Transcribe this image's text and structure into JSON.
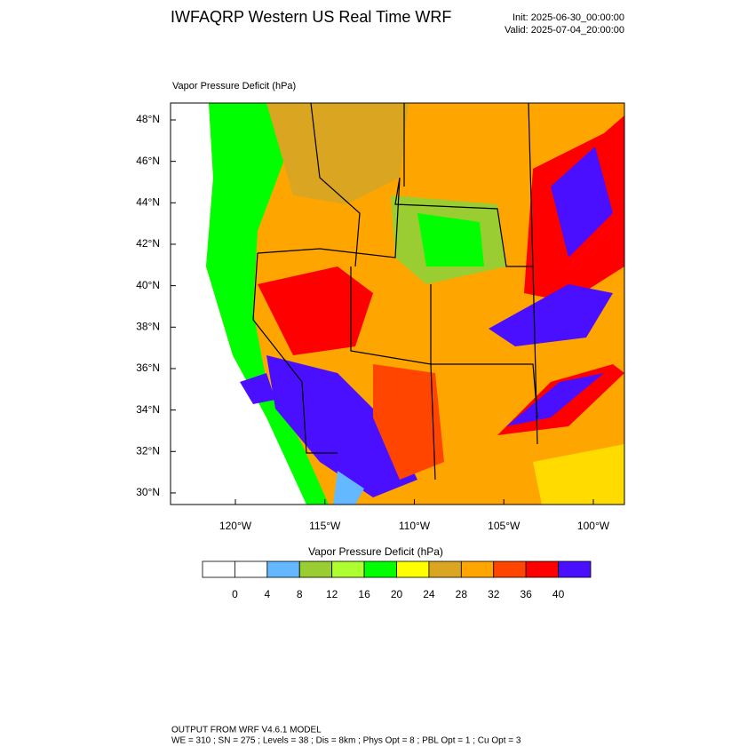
{
  "header": {
    "title": "IWFAQRP Western US Real Time WRF",
    "init": "Init: 2025-06-30_00:00:00",
    "valid": "Valid: 2025-07-04_20:00:00"
  },
  "map": {
    "title": "Vapor Pressure Deficit   (hPa)",
    "lat_ticks": [
      {
        "value": 48,
        "label": "48°N"
      },
      {
        "value": 46,
        "label": "46°N"
      },
      {
        "value": 44,
        "label": "44°N"
      },
      {
        "value": 42,
        "label": "42°N"
      },
      {
        "value": 40,
        "label": "40°N"
      },
      {
        "value": 38,
        "label": "38°N"
      },
      {
        "value": 36,
        "label": "36°N"
      },
      {
        "value": 34,
        "label": "34°N"
      },
      {
        "value": 32,
        "label": "32°N"
      },
      {
        "value": 30,
        "label": "30°N"
      }
    ],
    "lon_ticks": [
      {
        "value": -120,
        "label": "120°W"
      },
      {
        "value": -115,
        "label": "115°W"
      },
      {
        "value": -110,
        "label": "110°W"
      },
      {
        "value": -105,
        "label": "105°W"
      },
      {
        "value": -100,
        "label": "100°W"
      }
    ]
  },
  "colorbar": {
    "title": "Vapor Pressure Deficit  (hPa)",
    "levels": [
      0,
      4,
      8,
      12,
      16,
      20,
      24,
      28,
      32,
      36,
      40
    ],
    "colors": [
      "#ffffff",
      "#ffffff",
      "#63b8ff",
      "#9acd32",
      "#adff2f",
      "#00ff00",
      "#ffff00",
      "#daa520",
      "#ffa500",
      "#ff4500",
      "#ff0000",
      "#4a0fff"
    ]
  },
  "footer": {
    "line1": "OUTPUT FROM WRF V4.6.1 MODEL",
    "line2": "WE = 310 ; SN = 275 ; Levels = 38 ; Dis = 8km ; Phys Opt = 8 ; PBL Opt = 1 ; Cu Opt = 3"
  }
}
